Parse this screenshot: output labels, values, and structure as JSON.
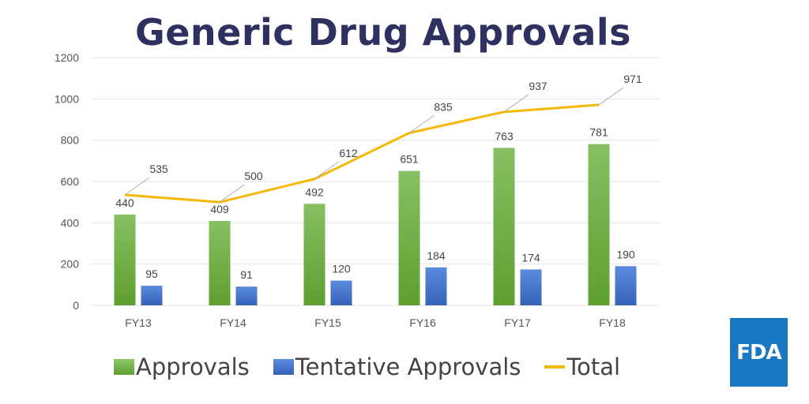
{
  "colors": {
    "title": "#2e3160",
    "approvals": "#70ad47",
    "tentative": "#4472c4",
    "total": "#f5b800",
    "grid": "#e6e6e6",
    "fda_bg": "#1a78c2"
  },
  "chart_data": {
    "type": "bar",
    "title": "Generic Drug Approvals",
    "categories": [
      "FY13",
      "FY14",
      "FY15",
      "FY16",
      "FY17",
      "FY18"
    ],
    "series": [
      {
        "name": "Approvals",
        "type": "bar",
        "color": "#70ad47",
        "values": [
          440,
          409,
          492,
          651,
          763,
          781
        ]
      },
      {
        "name": "Tentative Approvals",
        "type": "bar",
        "color": "#4472c4",
        "values": [
          95,
          91,
          120,
          184,
          174,
          190
        ]
      },
      {
        "name": "Total",
        "type": "line",
        "color": "#f5b800",
        "values": [
          535,
          500,
          612,
          835,
          937,
          971
        ]
      }
    ],
    "ylim": [
      0,
      1200
    ],
    "yticks": [
      0,
      200,
      400,
      600,
      800,
      1000,
      1200
    ],
    "grid": true,
    "legend_position": "bottom"
  },
  "legend": {
    "approvals": "Approvals",
    "tentative": "Tentative Approvals",
    "total": "Total"
  },
  "logo": {
    "text": "FDA"
  }
}
